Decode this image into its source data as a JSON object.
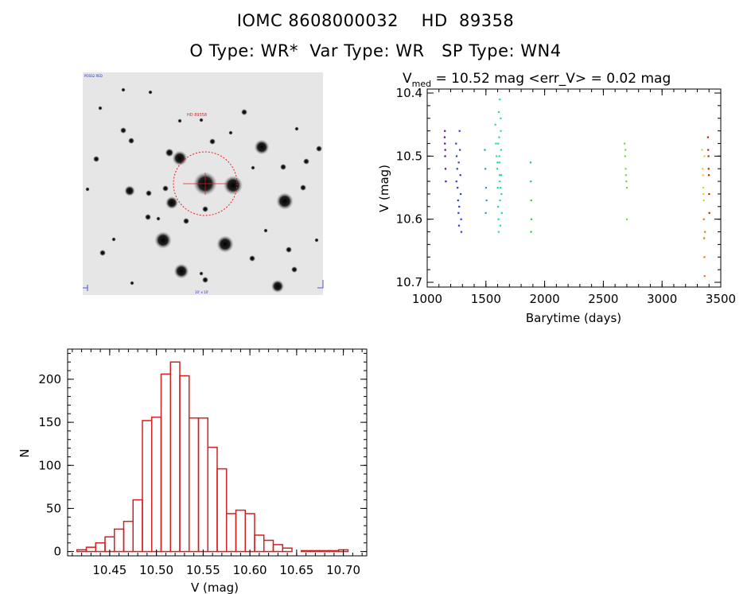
{
  "header": {
    "line1": "IOMC 8608000032    HD  89358",
    "line2": "O Type: WR*  Var Type: WR   SP Type: WN4"
  },
  "finder": {
    "label_top": "HD 89358",
    "label_corner_tl": "POSS2 RED",
    "label_bottom": "10' x 10'"
  },
  "chart_data": [
    {
      "type": "scatter",
      "title_prefix": "V",
      "title_sub": "med",
      "title_rest": " = 10.52 mag <err_V> = 0.02 mag",
      "xlabel": "Barytime (days)",
      "ylabel": "V (mag)",
      "xlim": [
        1000,
        3500
      ],
      "ylim": [
        10.7,
        10.4
      ],
      "y_inverted": true,
      "xticks": [
        1000,
        1500,
        2000,
        2500,
        3000,
        3500
      ],
      "yticks": [
        10.4,
        10.5,
        10.6,
        10.7
      ],
      "series": [
        {
          "color": "#5a0d8c",
          "points": [
            [
              1150,
              10.46
            ],
            [
              1150,
              10.48
            ],
            [
              1152,
              10.5
            ],
            [
              1155,
              10.52
            ],
            [
              1158,
              10.54
            ],
            [
              1148,
              10.47
            ],
            [
              1153,
              10.49
            ]
          ]
        },
        {
          "color": "#2a3ccc",
          "points": [
            [
              1245,
              10.48
            ],
            [
              1250,
              10.5
            ],
            [
              1255,
              10.52
            ],
            [
              1258,
              10.55
            ],
            [
              1262,
              10.57
            ],
            [
              1266,
              10.59
            ],
            [
              1270,
              10.61
            ],
            [
              1275,
              10.46
            ],
            [
              1278,
              10.49
            ],
            [
              1282,
              10.53
            ],
            [
              1285,
              10.56
            ],
            [
              1288,
              10.6
            ],
            [
              1290,
              10.62
            ],
            [
              1248,
              10.54
            ],
            [
              1268,
              10.51
            ],
            [
              1272,
              10.58
            ]
          ]
        },
        {
          "color": "#1ba3c6",
          "points": [
            [
              1490,
              10.49
            ],
            [
              1495,
              10.52
            ],
            [
              1500,
              10.55
            ],
            [
              1505,
              10.57
            ],
            [
              1498,
              10.59
            ]
          ]
        },
        {
          "color": "#20e0a0",
          "points": [
            [
              1580,
              10.45
            ],
            [
              1585,
              10.48
            ],
            [
              1590,
              10.5
            ],
            [
              1595,
              10.52
            ],
            [
              1600,
              10.55
            ],
            [
              1603,
              10.58
            ],
            [
              1606,
              10.6
            ],
            [
              1610,
              10.43
            ],
            [
              1612,
              10.47
            ],
            [
              1615,
              10.51
            ],
            [
              1618,
              10.54
            ],
            [
              1620,
              10.57
            ],
            [
              1622,
              10.61
            ],
            [
              1625,
              10.44
            ],
            [
              1628,
              10.49
            ],
            [
              1630,
              10.53
            ],
            [
              1632,
              10.56
            ],
            [
              1635,
              10.59
            ],
            [
              1608,
              10.62
            ],
            [
              1618,
              10.41
            ],
            [
              1626,
              10.46
            ],
            [
              1598,
              10.51
            ],
            [
              1614,
              10.5
            ],
            [
              1616,
              10.53
            ],
            [
              1604,
              10.48
            ],
            [
              1624,
              10.55
            ]
          ]
        },
        {
          "color": "#22d05a",
          "points": [
            [
              1880,
              10.51
            ],
            [
              1882,
              10.54
            ],
            [
              1885,
              10.57
            ],
            [
              1887,
              10.6
            ],
            [
              1884,
              10.62
            ]
          ]
        },
        {
          "color": "#6be030",
          "points": [
            [
              2680,
              10.48
            ],
            [
              2685,
              10.5
            ],
            [
              2690,
              10.52
            ],
            [
              2695,
              10.54
            ],
            [
              2700,
              10.55
            ],
            [
              2688,
              10.49
            ],
            [
              2692,
              10.53
            ],
            [
              2700,
              10.6
            ]
          ]
        },
        {
          "color": "#e6d21a",
          "points": [
            [
              3340,
              10.49
            ],
            [
              3345,
              10.52
            ],
            [
              3350,
              10.55
            ],
            [
              3355,
              10.57
            ],
            [
              3360,
              10.5
            ],
            [
              3348,
              10.53
            ],
            [
              3352,
              10.56
            ]
          ]
        },
        {
          "color": "#e07810",
          "points": [
            [
              3355,
              10.6
            ],
            [
              3358,
              10.63
            ],
            [
              3360,
              10.66
            ],
            [
              3362,
              10.69
            ],
            [
              3365,
              10.62
            ]
          ]
        },
        {
          "color": "#c81414",
          "points": [
            [
              3390,
              10.47
            ],
            [
              3395,
              10.5
            ],
            [
              3398,
              10.53
            ],
            [
              3400,
              10.56
            ],
            [
              3402,
              10.59
            ],
            [
              3396,
              10.52
            ],
            [
              3392,
              10.49
            ]
          ]
        }
      ]
    },
    {
      "type": "bar",
      "subtype": "histogram",
      "xlabel": "V (mag)",
      "ylabel": "N",
      "xlim": [
        10.405,
        10.725
      ],
      "ylim": [
        -5,
        235
      ],
      "xticks": [
        10.45,
        10.5,
        10.55,
        10.6,
        10.65,
        10.7
      ],
      "xtick_labels": [
        "10.45",
        "10.50",
        "10.55",
        "10.60",
        "10.65",
        "10.70"
      ],
      "yticks": [
        0,
        50,
        100,
        150,
        200
      ],
      "bin_width": 0.01,
      "bin_starts": [
        10.415,
        10.425,
        10.435,
        10.445,
        10.455,
        10.465,
        10.475,
        10.485,
        10.495,
        10.505,
        10.515,
        10.525,
        10.535,
        10.545,
        10.555,
        10.565,
        10.575,
        10.585,
        10.595,
        10.605,
        10.615,
        10.625,
        10.635,
        10.645,
        10.655,
        10.665,
        10.675,
        10.685,
        10.695,
        10.705
      ],
      "counts": [
        2,
        5,
        10,
        17,
        26,
        35,
        60,
        152,
        156,
        206,
        220,
        204,
        155,
        155,
        121,
        96,
        44,
        48,
        44,
        19,
        13,
        8,
        4,
        0,
        1,
        1,
        1,
        1,
        2,
        0
      ],
      "bar_color": "#d42020"
    }
  ]
}
